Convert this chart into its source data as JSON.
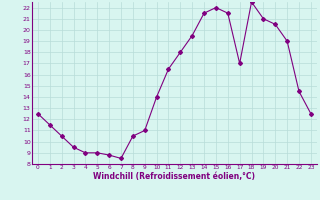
{
  "x": [
    0,
    1,
    2,
    3,
    4,
    5,
    6,
    7,
    8,
    9,
    10,
    11,
    12,
    13,
    14,
    15,
    16,
    17,
    18,
    19,
    20,
    21,
    22,
    23
  ],
  "y": [
    12.5,
    11.5,
    10.5,
    9.5,
    9.0,
    9.0,
    8.8,
    8.5,
    10.5,
    11.0,
    14.0,
    16.5,
    18.0,
    19.5,
    21.5,
    22.0,
    21.5,
    17.0,
    22.5,
    21.0,
    20.5,
    19.0,
    14.5,
    12.5
  ],
  "line_color": "#800080",
  "marker": "D",
  "marker_size": 2,
  "bg_color": "#d8f5f0",
  "grid_color": "#b8dcd8",
  "xlabel": "Windchill (Refroidissement éolien,°C)",
  "xlabel_color": "#800080",
  "tick_color": "#800080",
  "ylim": [
    8,
    22.5
  ],
  "xlim": [
    -0.5,
    23.5
  ],
  "yticks": [
    8,
    9,
    10,
    11,
    12,
    13,
    14,
    15,
    16,
    17,
    18,
    19,
    20,
    21,
    22
  ],
  "xticks": [
    0,
    1,
    2,
    3,
    4,
    5,
    6,
    7,
    8,
    9,
    10,
    11,
    12,
    13,
    14,
    15,
    16,
    17,
    18,
    19,
    20,
    21,
    22,
    23
  ]
}
